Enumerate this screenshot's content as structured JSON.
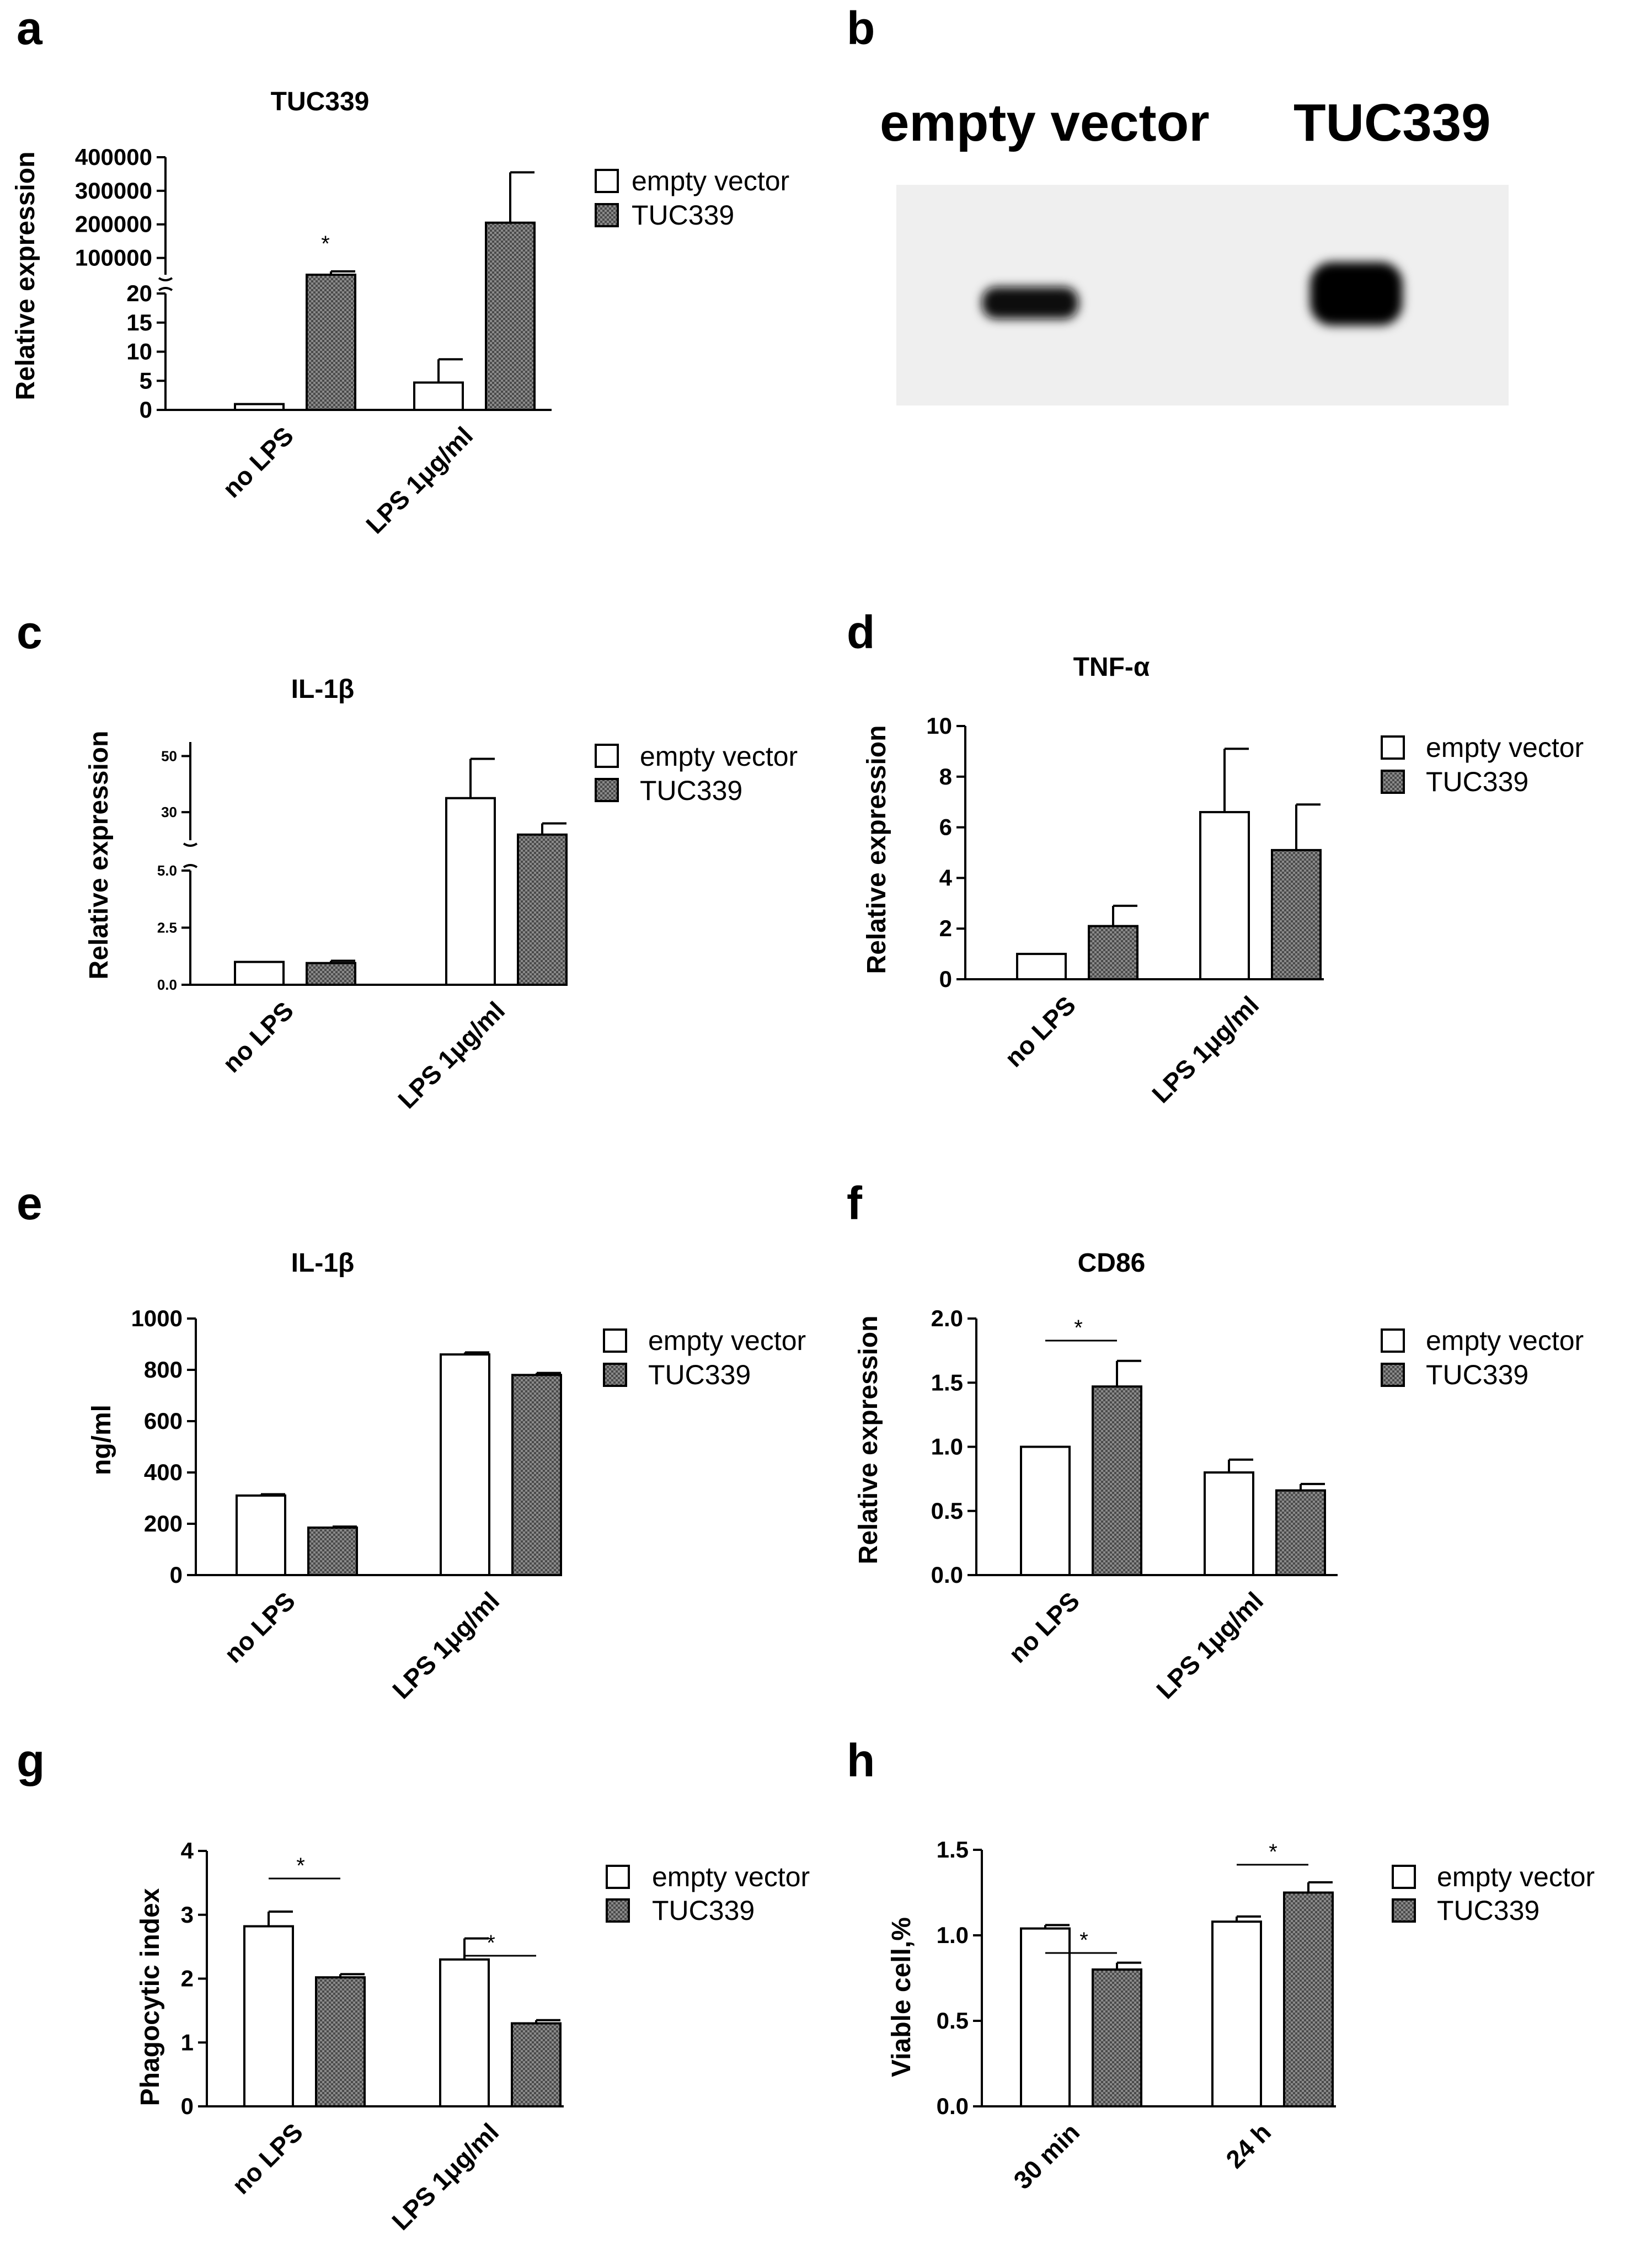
{
  "colors": {
    "axis": "#000000",
    "bar_empty": "#ffffff",
    "bar_tuc": "#6e6e6e",
    "band": "#0a0a0a",
    "blot_bg": "#efefef"
  },
  "legend": {
    "series1": "empty vector",
    "series2": "TUC339"
  },
  "panels": {
    "a": {
      "letter": "a",
      "title": "TUC339",
      "ylabel": "Relative expression",
      "ticks_low": [
        "0",
        "5",
        "10",
        "15",
        "20"
      ],
      "ticks_high": [
        "100000",
        "200000",
        "300000",
        "400000"
      ],
      "categories": [
        "no LPS",
        "LPS 1μg/ml"
      ],
      "star": "*"
    },
    "b": {
      "letter": "b",
      "label1": "empty vector",
      "label2": "TUC339"
    },
    "c": {
      "letter": "c",
      "title": "IL-1β",
      "ylabel": "Relative expression",
      "ticks_low": [
        "0.0",
        "2.5",
        "5.0"
      ],
      "ticks_high": [
        "30",
        "50"
      ],
      "categories": [
        "no LPS",
        "LPS 1μg/ml"
      ]
    },
    "d": {
      "letter": "d",
      "title": "TNF-α",
      "ylabel": "Relative expression",
      "ticks": [
        "0",
        "2",
        "4",
        "6",
        "8",
        "10"
      ],
      "categories": [
        "no LPS",
        "LPS 1μg/ml"
      ]
    },
    "e": {
      "letter": "e",
      "title": "IL-1β",
      "ylabel": "ng/ml",
      "ticks": [
        "0",
        "200",
        "400",
        "600",
        "800",
        "1000"
      ],
      "categories": [
        "no LPS",
        "LPS 1μg/ml"
      ]
    },
    "f": {
      "letter": "f",
      "title": "CD86",
      "ylabel": "Relative expression",
      "ticks": [
        "0.0",
        "0.5",
        "1.0",
        "1.5",
        "2.0"
      ],
      "categories": [
        "no LPS",
        "LPS 1μg/ml"
      ],
      "star": "*"
    },
    "g": {
      "letter": "g",
      "ylabel": "Phagocytic index",
      "ticks": [
        "0",
        "1",
        "2",
        "3",
        "4"
      ],
      "categories": [
        "no LPS",
        "LPS 1μg/ml"
      ],
      "star1": "*",
      "star2": "*"
    },
    "h": {
      "letter": "h",
      "ylabel": "Viable cell,%",
      "ticks": [
        "0.0",
        "0.5",
        "1.0",
        "1.5"
      ],
      "categories": [
        "30 min",
        "24 h"
      ],
      "star1": "*",
      "star2": "*"
    }
  },
  "chart_data": [
    {
      "panel": "a",
      "type": "bar",
      "title": "TUC339",
      "ylabel": "Relative expression",
      "axis_break": true,
      "categories": [
        "no LPS",
        "LPS 1μg/ml"
      ],
      "series": [
        {
          "name": "empty vector",
          "values": [
            1,
            4.7
          ],
          "errors": [
            0,
            4
          ]
        },
        {
          "name": "TUC339",
          "values": [
            50000,
            205000
          ],
          "errors": [
            10000,
            150000
          ]
        }
      ]
    },
    {
      "panel": "c",
      "type": "bar",
      "title": "IL-1β",
      "ylabel": "Relative expression",
      "axis_break": true,
      "categories": [
        "no LPS",
        "LPS 1μg/ml"
      ],
      "series": [
        {
          "name": "empty vector",
          "values": [
            1.0,
            35
          ],
          "errors": [
            0,
            14
          ]
        },
        {
          "name": "TUC339",
          "values": [
            0.95,
            22
          ],
          "errors": [
            0.1,
            4
          ]
        }
      ]
    },
    {
      "panel": "d",
      "type": "bar",
      "title": "TNF-α",
      "ylabel": "Relative expression",
      "ylim": [
        0,
        10
      ],
      "categories": [
        "no LPS",
        "LPS 1μg/ml"
      ],
      "series": [
        {
          "name": "empty vector",
          "values": [
            1.0,
            6.6
          ],
          "errors": [
            0,
            2.5
          ]
        },
        {
          "name": "TUC339",
          "values": [
            2.1,
            5.1
          ],
          "errors": [
            0.8,
            1.8
          ]
        }
      ]
    },
    {
      "panel": "e",
      "type": "bar",
      "title": "IL-1β",
      "ylabel": "ng/ml",
      "ylim": [
        0,
        1000
      ],
      "categories": [
        "no LPS",
        "LPS 1μg/ml"
      ],
      "series": [
        {
          "name": "empty vector",
          "values": [
            310,
            860
          ],
          "errors": [
            5,
            8
          ]
        },
        {
          "name": "TUC339",
          "values": [
            185,
            780
          ],
          "errors": [
            4,
            8
          ]
        }
      ]
    },
    {
      "panel": "f",
      "type": "bar",
      "title": "CD86",
      "ylabel": "Relative expression",
      "ylim": [
        0,
        2.0
      ],
      "categories": [
        "no LPS",
        "LPS 1μg/ml"
      ],
      "series": [
        {
          "name": "empty vector",
          "values": [
            1.0,
            0.8
          ],
          "errors": [
            0,
            0.1
          ]
        },
        {
          "name": "TUC339",
          "values": [
            1.47,
            0.66
          ],
          "errors": [
            0.2,
            0.05
          ]
        }
      ]
    },
    {
      "panel": "g",
      "type": "bar",
      "ylabel": "Phagocytic index",
      "ylim": [
        0,
        4
      ],
      "categories": [
        "no LPS",
        "LPS 1μg/ml"
      ],
      "series": [
        {
          "name": "empty vector",
          "values": [
            2.82,
            2.3
          ],
          "errors": [
            0.23,
            0.33
          ]
        },
        {
          "name": "TUC339",
          "values": [
            2.02,
            1.3
          ],
          "errors": [
            0.05,
            0.05
          ]
        }
      ]
    },
    {
      "panel": "h",
      "type": "bar",
      "ylabel": "Viable cell,%",
      "ylim": [
        0,
        1.5
      ],
      "categories": [
        "30 min",
        "24 h"
      ],
      "series": [
        {
          "name": "empty vector",
          "values": [
            1.04,
            1.08
          ],
          "errors": [
            0.02,
            0.03
          ]
        },
        {
          "name": "TUC339",
          "values": [
            0.8,
            1.25
          ],
          "errors": [
            0.04,
            0.06
          ]
        }
      ]
    }
  ]
}
